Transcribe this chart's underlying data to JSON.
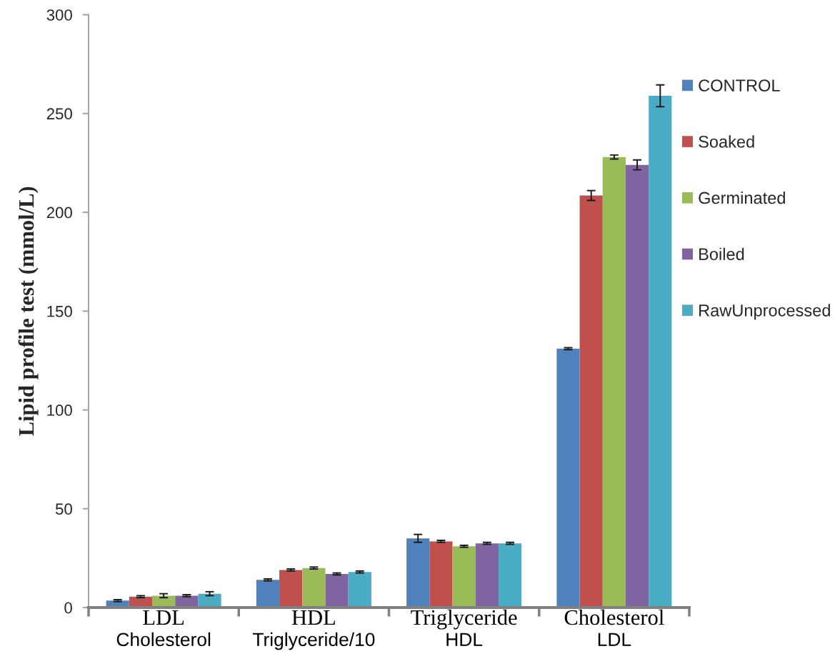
{
  "chart_data": {
    "type": "bar",
    "ylabel": "Lipid profile test (mmol/L)",
    "categories": [
      "LDL\nCholesterol",
      "HDL\nTriglyceride/10",
      "Triglyceride\nHDL",
      "Cholesterol\nLDL"
    ],
    "series": [
      {
        "name": "CONTROL",
        "color": "#4f81bd",
        "values": [
          3.5,
          14,
          35,
          131
        ],
        "errors": [
          0.5,
          0.5,
          2,
          0.5
        ]
      },
      {
        "name": "Soaked",
        "color": "#c0504d",
        "values": [
          5.5,
          19,
          33.5,
          208.5
        ],
        "errors": [
          0.5,
          0.5,
          0.5,
          2.5
        ]
      },
      {
        "name": "Germinated",
        "color": "#9bbb59",
        "values": [
          6,
          20,
          31,
          228
        ],
        "errors": [
          1,
          0.5,
          0.5,
          1
        ]
      },
      {
        "name": "Boiled",
        "color": "#8064a2",
        "values": [
          6,
          17,
          32.5,
          224
        ],
        "errors": [
          0.5,
          0.5,
          0.5,
          2.5
        ]
      },
      {
        "name": "RawUnprocessed",
        "color": "#4bacc6",
        "values": [
          7,
          18,
          32.5,
          259
        ],
        "errors": [
          1,
          0.5,
          0.5,
          5.5
        ]
      }
    ],
    "ylim": [
      0,
      300
    ],
    "yticks": [
      0,
      50,
      100,
      150,
      200,
      250,
      300
    ],
    "legend": "right"
  }
}
